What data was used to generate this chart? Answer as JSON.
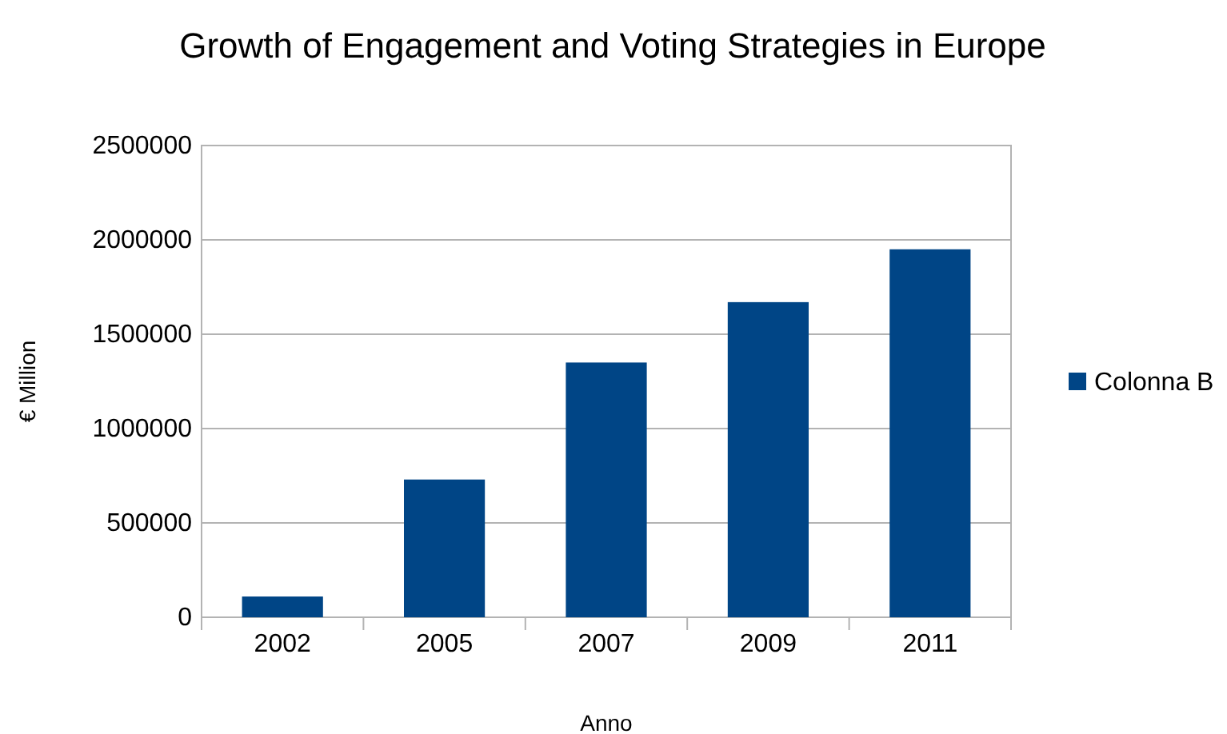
{
  "chart_data": {
    "type": "bar",
    "title": "Growth of Engagement and Voting Strategies in Europe",
    "xlabel": "Anno",
    "ylabel": "€ Million",
    "categories": [
      "2002",
      "2005",
      "2007",
      "2009",
      "2011"
    ],
    "series": [
      {
        "name": "Colonna B",
        "color": "#004586",
        "values": [
          110000,
          730000,
          1350000,
          1670000,
          1950000
        ]
      }
    ],
    "ylim": [
      0,
      2500000
    ],
    "yticks": [
      0,
      500000,
      1000000,
      1500000,
      2000000,
      2500000
    ],
    "grid": "y",
    "legend": "right"
  }
}
